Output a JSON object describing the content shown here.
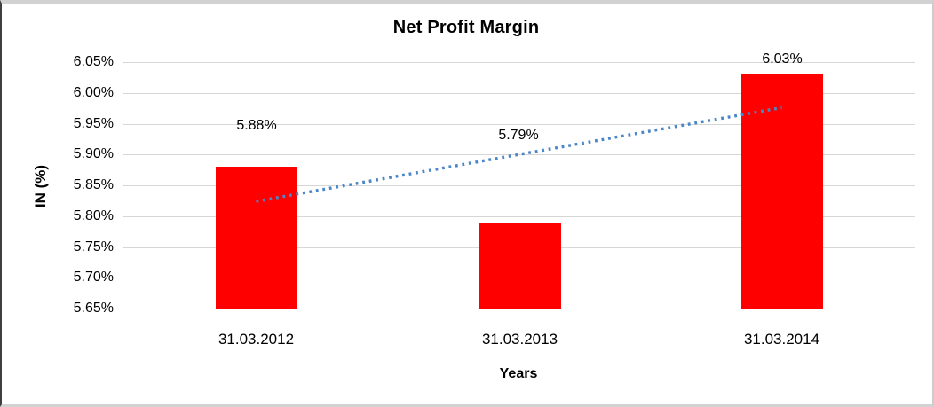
{
  "chart_data": {
    "type": "bar",
    "title": "Net Profit Margin",
    "xlabel": "Years",
    "ylabel": "IN (%)",
    "categories": [
      "31.03.2012",
      "31.03.2013",
      "31.03.2014"
    ],
    "values": [
      5.88,
      5.79,
      6.03
    ],
    "data_labels": [
      "5.88%",
      "5.79%",
      "6.03%"
    ],
    "y_tick_labels": [
      "6.05%",
      "6.00%",
      "5.95%",
      "5.90%",
      "5.85%",
      "5.80%",
      "5.75%",
      "5.70%",
      "5.65%"
    ],
    "y_tick_values": [
      6.05,
      6.0,
      5.95,
      5.9,
      5.85,
      5.8,
      5.75,
      5.7,
      5.65
    ],
    "ylim": [
      5.65,
      6.05
    ],
    "grid": true,
    "legend": "none",
    "bar_color": "#ff0000",
    "gridline_color": "#d6d6d6",
    "trendline": {
      "style": "dotted",
      "color": "#4a86c8",
      "start_value": 5.824,
      "end_value": 5.976
    }
  }
}
